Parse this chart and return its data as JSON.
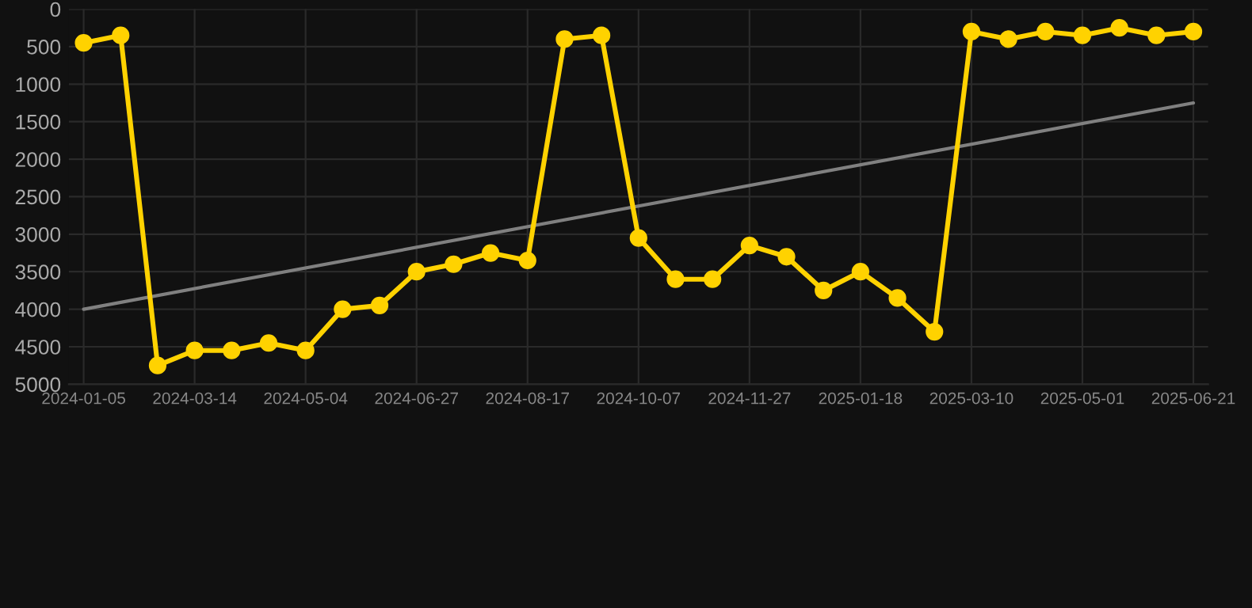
{
  "chart_data": {
    "type": "line",
    "categories": [
      "2024-01-05",
      null,
      null,
      "2024-03-14",
      null,
      null,
      "2024-05-04",
      null,
      null,
      "2024-06-27",
      null,
      null,
      "2024-08-17",
      null,
      null,
      "2024-10-07",
      null,
      null,
      "2024-11-27",
      null,
      null,
      "2025-01-18",
      null,
      null,
      "2025-03-10",
      null,
      null,
      "2025-05-01",
      null,
      null,
      "2025-06-21"
    ],
    "series": [
      {
        "color": "#ffd200",
        "marker": "circle",
        "values": [
          450,
          350,
          4750,
          4550,
          4550,
          4450,
          4550,
          4000,
          3950,
          3500,
          3400,
          3250,
          3350,
          400,
          350,
          3050,
          3600,
          3600,
          3150,
          3300,
          3750,
          3500,
          3850,
          4300,
          300,
          400,
          300,
          350,
          250,
          350,
          300
        ]
      },
      {
        "type": "line",
        "color": "#808080",
        "marker": "none",
        "values": [
          4000,
          null,
          null,
          null,
          null,
          null,
          null,
          null,
          null,
          null,
          null,
          null,
          null,
          null,
          null,
          null,
          null,
          null,
          null,
          null,
          null,
          null,
          null,
          null,
          null,
          null,
          null,
          null,
          null,
          null,
          1250
        ]
      }
    ],
    "ylim": [
      5000,
      0
    ],
    "yticks": [
      0,
      500,
      1000,
      1500,
      2000,
      2500,
      3000,
      3500,
      4000,
      4500,
      5000
    ],
    "grid": true
  }
}
